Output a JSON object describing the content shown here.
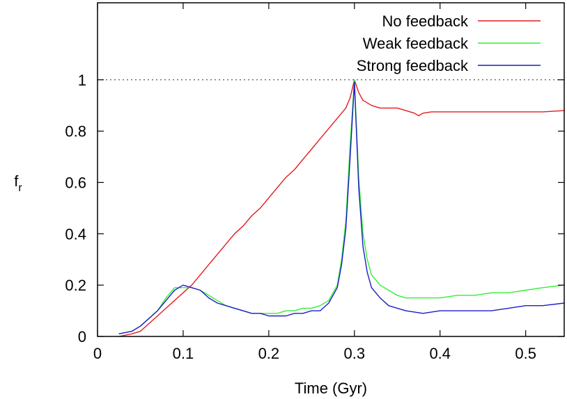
{
  "chart_data": {
    "type": "line",
    "xlabel": "Time (Gyr)",
    "ylabel": {
      "main": "f",
      "sub": "r"
    },
    "xlim": [
      0,
      0.545
    ],
    "ylim": [
      0,
      1.3
    ],
    "xticks": [
      0,
      0.1,
      0.2,
      0.3,
      0.4,
      0.5
    ],
    "xtick_labels": [
      "0",
      "0.1",
      "0.2",
      "0.3",
      "0.4",
      "0.5"
    ],
    "yticks": [
      0,
      0.2,
      0.4,
      0.6,
      0.8,
      1
    ],
    "ytick_labels": [
      "0",
      "0.2",
      "0.4",
      "0.6",
      "0.8",
      "1"
    ],
    "reference_line": {
      "y": 1,
      "style": "dotted",
      "color": "#555555"
    },
    "legend_position": "top-right",
    "grid": false,
    "series": [
      {
        "name": "No feedback",
        "color": "#e41a1c",
        "x": [
          0.025,
          0.04,
          0.05,
          0.06,
          0.07,
          0.08,
          0.09,
          0.1,
          0.11,
          0.12,
          0.13,
          0.14,
          0.15,
          0.16,
          0.17,
          0.18,
          0.19,
          0.2,
          0.21,
          0.22,
          0.23,
          0.24,
          0.25,
          0.26,
          0.27,
          0.28,
          0.29,
          0.295,
          0.3,
          0.305,
          0.31,
          0.32,
          0.33,
          0.34,
          0.35,
          0.36,
          0.37,
          0.375,
          0.38,
          0.39,
          0.4,
          0.42,
          0.44,
          0.46,
          0.48,
          0.5,
          0.52,
          0.545
        ],
        "y": [
          0.0,
          0.01,
          0.02,
          0.05,
          0.08,
          0.11,
          0.14,
          0.17,
          0.2,
          0.24,
          0.28,
          0.32,
          0.36,
          0.4,
          0.43,
          0.47,
          0.5,
          0.54,
          0.58,
          0.62,
          0.65,
          0.69,
          0.73,
          0.77,
          0.81,
          0.85,
          0.89,
          0.93,
          1.0,
          0.95,
          0.92,
          0.9,
          0.89,
          0.89,
          0.89,
          0.88,
          0.87,
          0.86,
          0.87,
          0.875,
          0.875,
          0.875,
          0.875,
          0.875,
          0.875,
          0.875,
          0.875,
          0.88
        ]
      },
      {
        "name": "Weak feedback",
        "color": "#33ee33",
        "x": [
          0.025,
          0.04,
          0.05,
          0.06,
          0.07,
          0.08,
          0.09,
          0.1,
          0.11,
          0.12,
          0.13,
          0.14,
          0.15,
          0.16,
          0.17,
          0.18,
          0.19,
          0.2,
          0.21,
          0.22,
          0.23,
          0.24,
          0.25,
          0.26,
          0.27,
          0.28,
          0.285,
          0.29,
          0.295,
          0.3,
          0.305,
          0.31,
          0.315,
          0.32,
          0.33,
          0.34,
          0.35,
          0.36,
          0.38,
          0.4,
          0.42,
          0.44,
          0.46,
          0.48,
          0.5,
          0.52,
          0.545
        ],
        "y": [
          0.01,
          0.02,
          0.04,
          0.07,
          0.1,
          0.15,
          0.19,
          0.19,
          0.19,
          0.18,
          0.16,
          0.14,
          0.12,
          0.11,
          0.1,
          0.09,
          0.09,
          0.09,
          0.09,
          0.1,
          0.1,
          0.11,
          0.11,
          0.12,
          0.14,
          0.2,
          0.3,
          0.45,
          0.75,
          1.0,
          0.62,
          0.4,
          0.3,
          0.24,
          0.2,
          0.18,
          0.16,
          0.15,
          0.15,
          0.15,
          0.16,
          0.16,
          0.17,
          0.17,
          0.18,
          0.19,
          0.2
        ]
      },
      {
        "name": "Strong feedback",
        "color": "#1c1cc8",
        "x": [
          0.025,
          0.04,
          0.05,
          0.06,
          0.07,
          0.08,
          0.09,
          0.1,
          0.11,
          0.12,
          0.13,
          0.14,
          0.15,
          0.16,
          0.17,
          0.18,
          0.19,
          0.2,
          0.21,
          0.22,
          0.23,
          0.24,
          0.25,
          0.26,
          0.27,
          0.28,
          0.285,
          0.29,
          0.295,
          0.3,
          0.305,
          0.31,
          0.315,
          0.32,
          0.33,
          0.34,
          0.35,
          0.36,
          0.38,
          0.4,
          0.42,
          0.44,
          0.46,
          0.48,
          0.5,
          0.52,
          0.545
        ],
        "y": [
          0.01,
          0.02,
          0.04,
          0.07,
          0.1,
          0.14,
          0.18,
          0.2,
          0.19,
          0.18,
          0.15,
          0.13,
          0.12,
          0.11,
          0.1,
          0.09,
          0.09,
          0.08,
          0.08,
          0.08,
          0.09,
          0.09,
          0.1,
          0.1,
          0.13,
          0.19,
          0.28,
          0.42,
          0.7,
          0.99,
          0.58,
          0.35,
          0.25,
          0.19,
          0.15,
          0.12,
          0.11,
          0.1,
          0.09,
          0.1,
          0.1,
          0.1,
          0.1,
          0.11,
          0.12,
          0.12,
          0.13
        ]
      }
    ]
  }
}
